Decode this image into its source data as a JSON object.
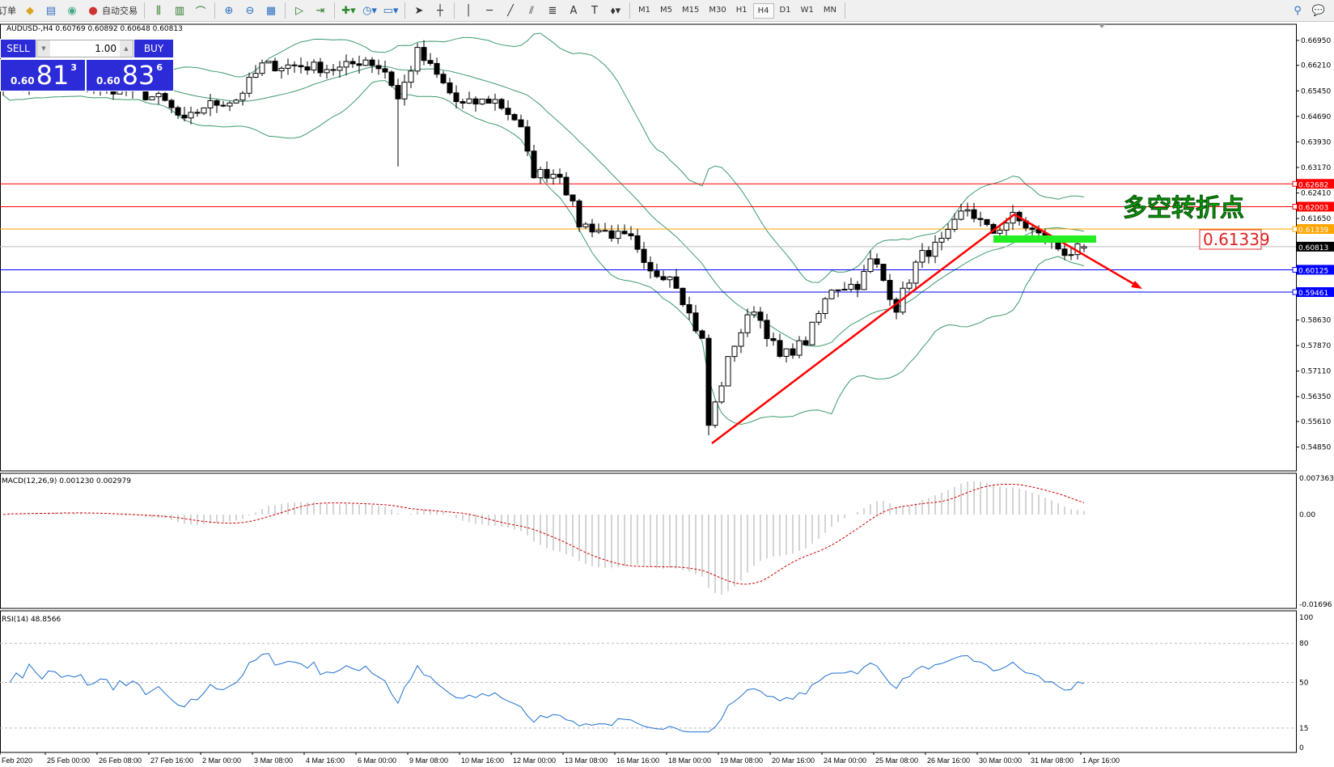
{
  "toolbar": {
    "new_order_label": "订单",
    "auto_trading_label": "自动交易",
    "timeframes": [
      "M1",
      "M5",
      "M15",
      "M30",
      "H1",
      "H4",
      "D1",
      "W1",
      "MN"
    ],
    "active_timeframe": "H4"
  },
  "chart": {
    "symbol_line": "AUDUSD-,H4  0.60769 0.60892 0.60648 0.60813",
    "current_price": "0.60813",
    "price_ticks": [
      "0.66950",
      "0.66210",
      "0.65450",
      "0.64690",
      "0.63930",
      "0.63170",
      "0.62410",
      "0.61650",
      "0.58630",
      "0.57870",
      "0.57110",
      "0.56350",
      "0.55610",
      "0.54850"
    ],
    "levels": [
      {
        "label": "0.62682",
        "color": "#ff0000"
      },
      {
        "label": "0.62003",
        "color": "#ff0000"
      },
      {
        "label": "0.61339",
        "color": "#ffa500"
      },
      {
        "label": "0.60125",
        "color": "#0000ff"
      },
      {
        "label": "0.59461",
        "color": "#0000ff"
      }
    ],
    "annotation_text": "多空转折点",
    "annotation_price": "0.61339",
    "annotation_color": "#00ee00",
    "trendline_color": "#ff0000",
    "band_color": "#3c9a6e"
  },
  "trade_panel": {
    "sell_label": "SELL",
    "buy_label": "BUY",
    "lot": "1.00",
    "sell_prefix": "0.60",
    "sell_big": "81",
    "sell_sup": "3",
    "buy_prefix": "0.60",
    "buy_big": "83",
    "buy_sup": "6"
  },
  "macd": {
    "label": "MACD(12,26,9) 0.001230 0.002979",
    "ticks": [
      "0.007363",
      "0.00",
      "-0.01696"
    ]
  },
  "rsi": {
    "label": "RSI(14) 48.8566",
    "ticks": [
      "100",
      "80",
      "50",
      "15",
      "0"
    ]
  },
  "time_labels": [
    "Feb 2020",
    "25 Feb 00:00",
    "26 Feb 08:00",
    "27 Feb 16:00",
    "2 Mar 00:00",
    "3 Mar 08:00",
    "4 Mar 16:00",
    "6 Mar 00:00",
    "9 Mar 08:00",
    "10 Mar 16:00",
    "12 Mar 00:00",
    "13 Mar 08:00",
    "16 Mar 16:00",
    "18 Mar 00:00",
    "19 Mar 08:00",
    "20 Mar 16:00",
    "24 Mar 00:00",
    "25 Mar 08:00",
    "26 Mar 16:00",
    "30 Mar 00:00",
    "31 Mar 08:00",
    "1 Apr 16:00"
  ]
}
